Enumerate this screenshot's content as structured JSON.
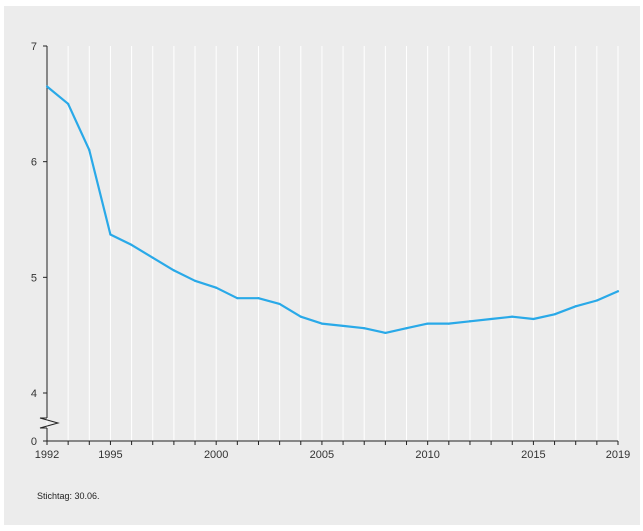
{
  "chart_data": {
    "type": "line",
    "title": "",
    "xlabel": "",
    "ylabel": "",
    "x": [
      1992,
      1993,
      1994,
      1995,
      1996,
      1997,
      1998,
      1999,
      2000,
      2001,
      2002,
      2003,
      2004,
      2005,
      2006,
      2007,
      2008,
      2009,
      2010,
      2011,
      2012,
      2013,
      2014,
      2015,
      2016,
      2017,
      2018,
      2019
    ],
    "series": [
      {
        "color": "#29a9e8",
        "values": [
          6.65,
          6.5,
          6.1,
          5.37,
          5.28,
          5.17,
          5.06,
          4.97,
          4.91,
          4.82,
          4.82,
          4.77,
          4.66,
          4.6,
          4.58,
          4.56,
          4.52,
          4.56,
          4.6,
          4.6,
          4.62,
          4.64,
          4.66,
          4.64,
          4.68,
          4.75,
          4.8,
          4.88
        ]
      }
    ],
    "xlim": [
      1992,
      2019
    ],
    "ylim": [
      0,
      7
    ],
    "y_axis_break": [
      0,
      4
    ],
    "x_ticks": [
      1992,
      1995,
      2000,
      2005,
      2010,
      2015,
      2019
    ],
    "y_ticks": [
      0,
      4,
      5,
      6,
      7
    ],
    "grid": "vertical lines at every year"
  },
  "footnote": "Stichtag: 30.06."
}
